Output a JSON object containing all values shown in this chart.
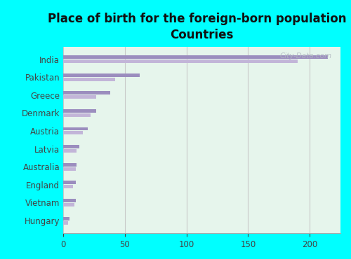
{
  "title": "Place of birth for the foreign-born population -\nCountries",
  "categories": [
    "India",
    "Pakistan",
    "Greece",
    "Denmark",
    "Austria",
    "Latvia",
    "Australia",
    "England",
    "Vietnam",
    "Hungary"
  ],
  "values_dark": [
    215,
    62,
    38,
    27,
    20,
    13,
    11,
    10,
    10,
    5
  ],
  "values_light": [
    190,
    42,
    27,
    22,
    16,
    11,
    10,
    8,
    9,
    4
  ],
  "bar_color_dark": "#9b8dbe",
  "bar_color_light": "#c2b5d8",
  "xlim": [
    0,
    225
  ],
  "xticks": [
    0,
    50,
    100,
    150,
    200
  ],
  "background_color_outer": "#00ffff",
  "background_color_inner": "#e6f5ec",
  "grid_color": "#c8c8c8",
  "watermark": "City-Data.com",
  "title_fontsize": 12,
  "tick_fontsize": 8.5,
  "label_fontsize": 8.5
}
